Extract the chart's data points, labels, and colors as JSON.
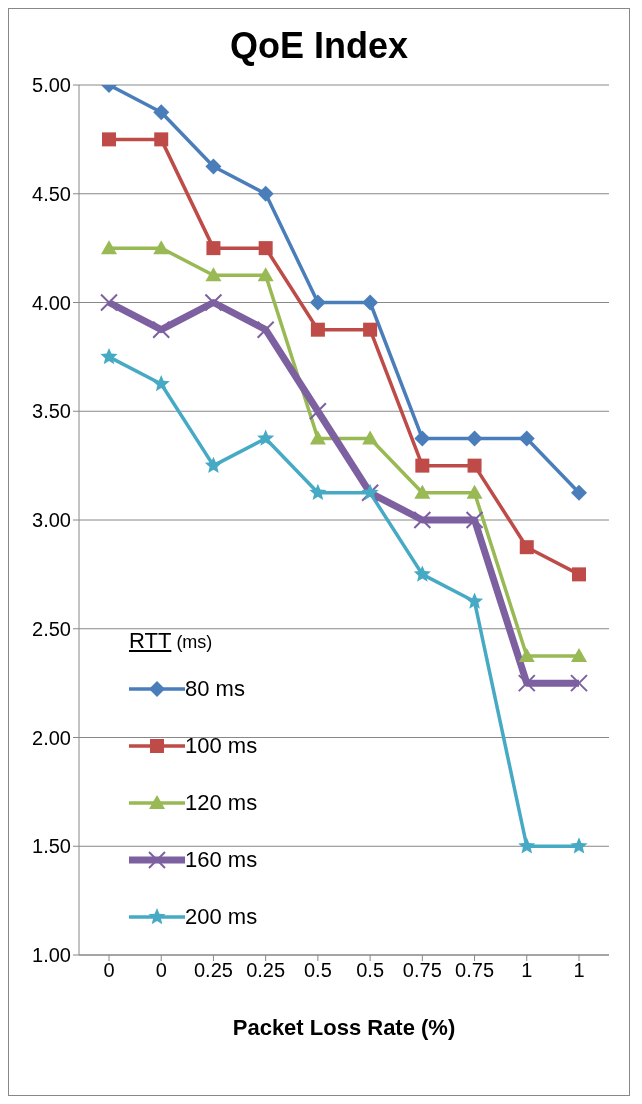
{
  "chart_data": {
    "type": "line",
    "title": "QoE Index",
    "xlabel": "Packet Loss Rate (%)",
    "legend_title": "RTT (ms)",
    "categories": [
      "0",
      "0",
      "0.25",
      "0.25",
      "0.5",
      "0.5",
      "0.75",
      "0.75",
      "1",
      "1"
    ],
    "series": [
      {
        "name": "80 ms",
        "color": "#4a7ebb",
        "marker": "diamond",
        "values": [
          5.0,
          4.875,
          4.625,
          4.5,
          4.0,
          4.0,
          3.375,
          3.375,
          3.375,
          3.125
        ]
      },
      {
        "name": "100 ms",
        "color": "#be4b48",
        "marker": "square",
        "values": [
          4.75,
          4.75,
          4.25,
          4.25,
          3.875,
          3.875,
          3.25,
          3.25,
          2.875,
          2.75
        ]
      },
      {
        "name": "120 ms",
        "color": "#98b954",
        "marker": "triangle",
        "values": [
          4.25,
          4.25,
          4.125,
          4.125,
          3.375,
          3.375,
          3.125,
          3.125,
          2.375,
          2.375
        ]
      },
      {
        "name": "160 ms",
        "color": "#7d60a0",
        "marker": "cross",
        "values": [
          4.0,
          3.875,
          4.0,
          3.875,
          3.5,
          3.125,
          3.0,
          3.0,
          2.25,
          2.25
        ]
      },
      {
        "name": "200 ms",
        "color": "#46aac5",
        "marker": "star",
        "values": [
          3.75,
          3.625,
          3.25,
          3.375,
          3.125,
          3.125,
          2.75,
          2.625,
          1.5,
          1.5
        ]
      }
    ],
    "ylim": [
      1,
      5
    ],
    "yticks": [
      {
        "value": 1,
        "label": "1.00"
      },
      {
        "value": 1.5,
        "label": "1.50"
      },
      {
        "value": 2,
        "label": "2.00"
      },
      {
        "value": 2.5,
        "label": "2.50"
      },
      {
        "value": 3,
        "label": "3.00"
      },
      {
        "value": 3.5,
        "label": "3.50"
      },
      {
        "value": 4,
        "label": "4.00"
      },
      {
        "value": 4.5,
        "label": "4.50"
      },
      {
        "value": 5,
        "label": "5.00"
      }
    ],
    "grid": "y",
    "legend": "bottom left",
    "line_style": "solid"
  }
}
